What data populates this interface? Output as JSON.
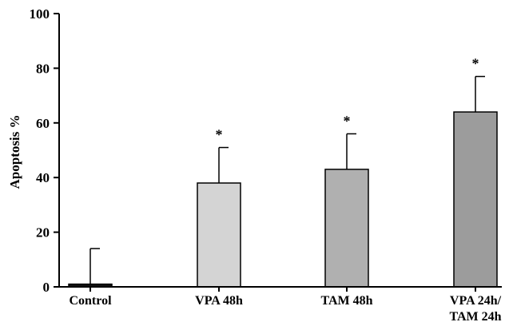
{
  "chart_data": {
    "type": "bar",
    "title": "",
    "xlabel": "",
    "ylabel": "Apoptosis %",
    "ylim": [
      0,
      100
    ],
    "yticks": [
      0,
      20,
      40,
      60,
      80,
      100
    ],
    "grid": false,
    "legend": "none",
    "categories": [
      [
        "Control"
      ],
      [
        "VPA 48h"
      ],
      [
        "TAM 48h"
      ],
      [
        "VPA 24h/",
        "TAM 24h"
      ]
    ],
    "values": [
      1,
      38,
      43,
      64
    ],
    "errors": [
      13,
      13,
      13,
      13
    ],
    "significance": [
      "",
      "*",
      "*",
      "*"
    ],
    "bar_colors": [
      "#111111",
      "#d4d4d4",
      "#b0b0b0",
      "#9c9c9c"
    ],
    "bar_edge_color": "#000000"
  }
}
